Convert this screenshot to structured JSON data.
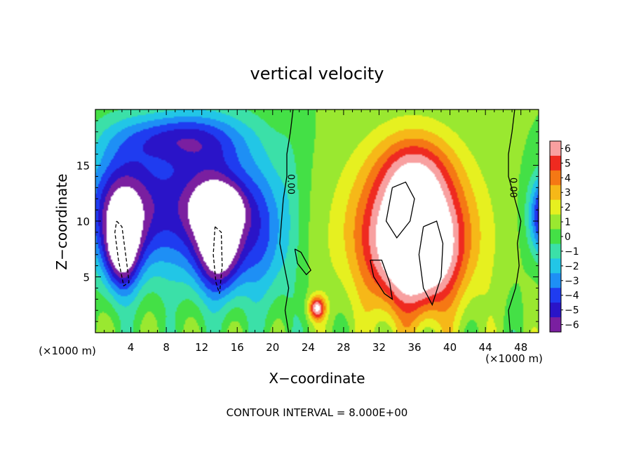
{
  "chart_data": {
    "type": "heatmap",
    "title": "vertical velocity",
    "xlabel": "X−coordinate",
    "ylabel": "Z−coordinate",
    "x_unit_left": "(×1000 m)",
    "x_unit_right": "(×1000 m)",
    "xlim": [
      0,
      50
    ],
    "ylim": [
      0,
      20
    ],
    "x_ticks": [
      4,
      8,
      12,
      16,
      20,
      24,
      28,
      32,
      36,
      40,
      44,
      48
    ],
    "x_tick_labels": [
      "4",
      "8",
      "12",
      "16",
      "20",
      "24",
      "28",
      "32",
      "36",
      "40",
      "44",
      "48"
    ],
    "y_ticks": [
      5,
      10,
      15
    ],
    "y_tick_labels": [
      "5",
      "10",
      "15"
    ],
    "colorbar": {
      "min": -6,
      "max": 6,
      "ticks": [
        6,
        5,
        4,
        3,
        2,
        1,
        0,
        -1,
        -2,
        -3,
        -4,
        -5,
        -6
      ],
      "tick_labels": [
        "6",
        "5",
        "4",
        "3",
        "2",
        "1",
        "0",
        "−1",
        "−2",
        "−3",
        "−4",
        "−5",
        "−6"
      ]
    },
    "contour_labels": [
      {
        "text": "0.00",
        "x": 21.7,
        "z": 13.3
      },
      {
        "text": "0.00",
        "x": 46.8,
        "z": 13.0
      }
    ],
    "contour_interval_note": "CONTOUR INTERVAL = 8.000E+00",
    "features": [
      {
        "kind": "downdraft",
        "x": 3.0,
        "z": 7.5,
        "sx": 2.0,
        "sz": 4.0,
        "w": -9
      },
      {
        "kind": "downdraft",
        "x": 14.0,
        "z": 7.5,
        "sx": 2.6,
        "sz": 4.2,
        "w": -9
      },
      {
        "kind": "updraft",
        "x": 35.5,
        "z": 8.0,
        "sx": 4.5,
        "sz": 5.0,
        "w": 10
      },
      {
        "kind": "updraft",
        "x": 25.0,
        "z": 2.2,
        "sx": 0.8,
        "sz": 0.9,
        "w": 6
      }
    ],
    "colors": {
      "neg6": "#7a1fa0",
      "neg5": "#2a14c8",
      "neg4": "#1f3cf0",
      "neg3": "#1e8ff5",
      "neg2": "#22c6e6",
      "neg1": "#3be0a8",
      "zero": "#44e046",
      "pos1": "#9ae830",
      "pos2": "#e6f020",
      "pos3": "#f6b818",
      "pos4": "#f57814",
      "pos5": "#ef2a20",
      "pos6": "#f8a0a0",
      "saturated": "#ffffff"
    }
  }
}
